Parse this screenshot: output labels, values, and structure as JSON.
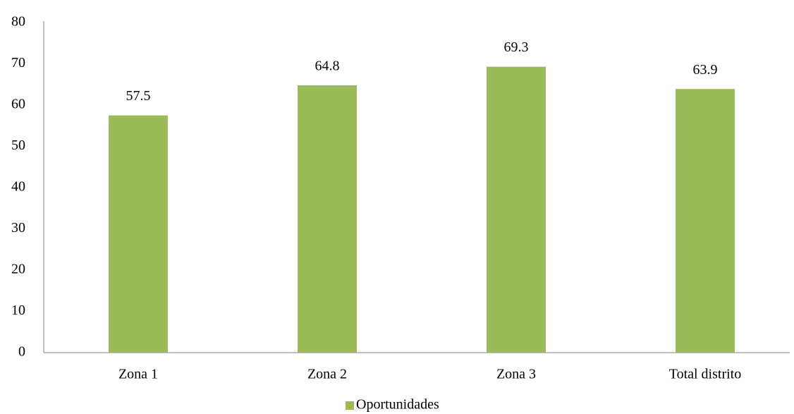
{
  "chart_data": {
    "type": "bar",
    "categories": [
      "Zona 1",
      "Zona 2",
      "Zona 3",
      "Total distrito"
    ],
    "series": [
      {
        "name": "Oportunidades",
        "color": "#9bbb59",
        "values": [
          57.5,
          64.8,
          69.3,
          63.9
        ]
      }
    ],
    "ylim": [
      0,
      80
    ],
    "yticks": [
      0,
      10,
      20,
      30,
      40,
      50,
      60,
      70,
      80
    ],
    "grid": false,
    "legend": "bottom"
  }
}
